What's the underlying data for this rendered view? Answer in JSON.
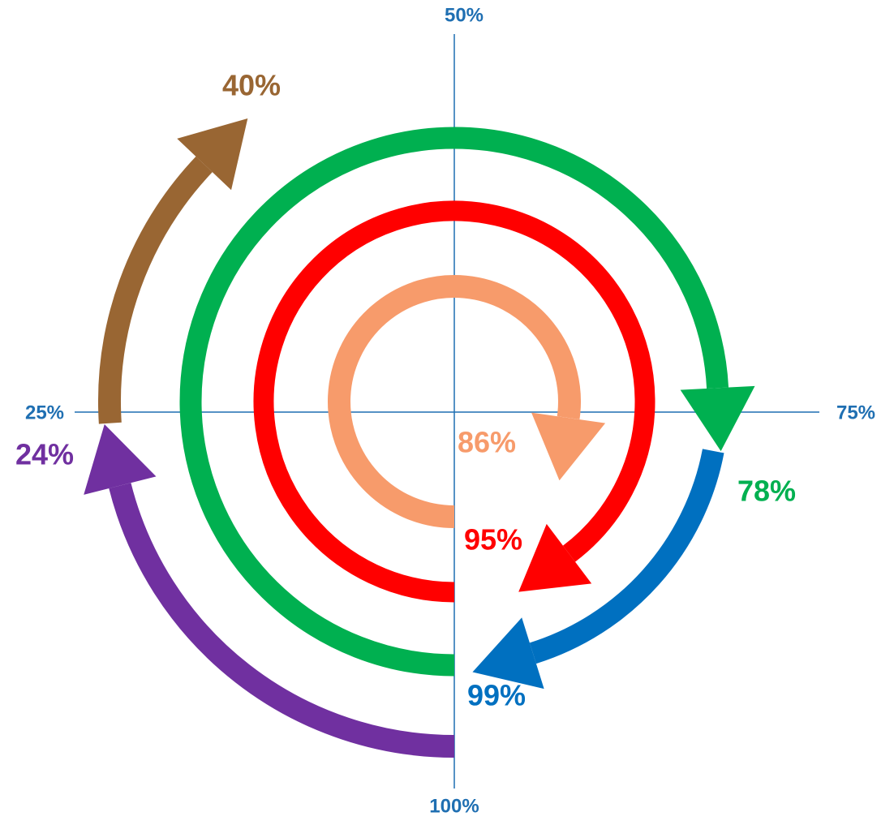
{
  "chart_data": {
    "type": "radial-arrows",
    "lim": [
      0,
      100
    ],
    "ticks": [
      {
        "value": 25,
        "label": "25%"
      },
      {
        "value": 50,
        "label": "50%"
      },
      {
        "value": 75,
        "label": "75%"
      },
      {
        "value": 100,
        "label": "100%"
      }
    ],
    "tick_color": "#1f6fb2",
    "rings": [
      {
        "series": [
          {
            "color": "#7030a0",
            "values": [
              24
            ],
            "value_labels": [
              "24%"
            ]
          },
          {
            "color": "#996633",
            "values": [
              40
            ],
            "value_labels": [
              "40%"
            ]
          }
        ]
      },
      {
        "series": [
          {
            "color": "#00b050",
            "values": [
              78
            ],
            "value_labels": [
              "78%"
            ]
          },
          {
            "color": "#0070c0",
            "values": [
              99
            ],
            "value_labels": [
              "99%"
            ]
          }
        ]
      },
      {
        "series": [
          {
            "color": "#ff0000",
            "values": [
              95
            ],
            "value_labels": [
              "95%"
            ]
          }
        ]
      },
      {
        "series": [
          {
            "color": "#f79b6b",
            "values": [
              86
            ],
            "value_labels": [
              "86%"
            ]
          }
        ]
      }
    ]
  }
}
